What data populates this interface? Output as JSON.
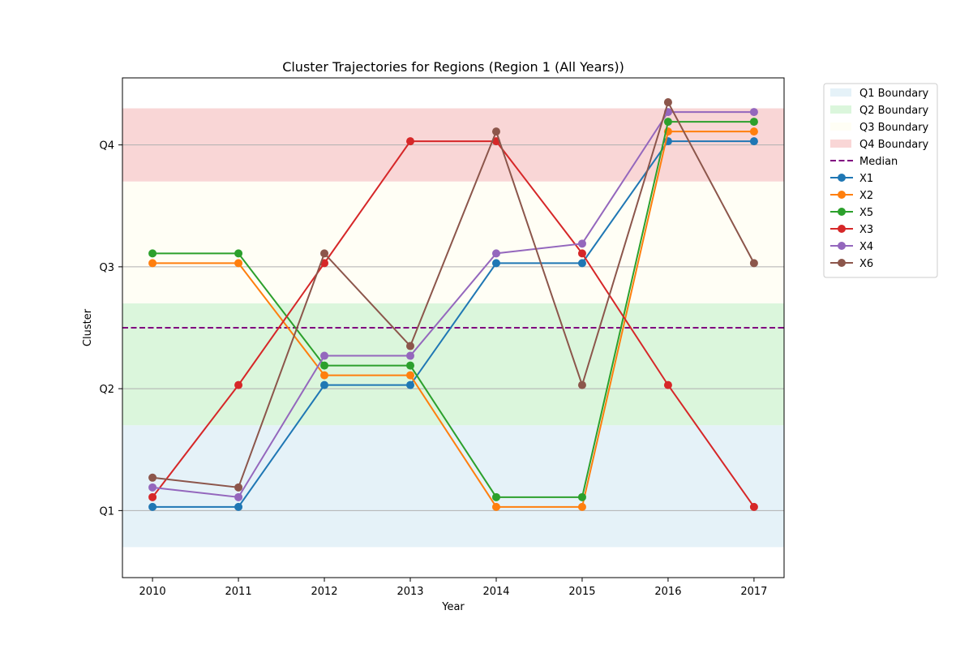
{
  "chart_data": {
    "type": "line",
    "title": "Cluster Trajectories for Regions (Region 1 (All Years))",
    "xlabel": "Year",
    "ylabel": "Cluster",
    "x": [
      2010,
      2011,
      2012,
      2013,
      2014,
      2015,
      2016,
      2017
    ],
    "xlim": [
      2009.65,
      2017.35
    ],
    "ylim": [
      0.45,
      4.55
    ],
    "y_ticks": [
      {
        "value": 1,
        "label": "Q1"
      },
      {
        "value": 2,
        "label": "Q2"
      },
      {
        "value": 3,
        "label": "Q3"
      },
      {
        "value": 4,
        "label": "Q4"
      }
    ],
    "grid": "horizontal",
    "legend_position": "outside top-right",
    "bands": [
      {
        "name": "Q1 Boundary",
        "from": 0.7,
        "to": 1.7,
        "color": "#e5f2f8"
      },
      {
        "name": "Q2 Boundary",
        "from": 1.7,
        "to": 2.7,
        "color": "#dbf6dc"
      },
      {
        "name": "Q3 Boundary",
        "from": 2.7,
        "to": 3.7,
        "color": "#fffef5"
      },
      {
        "name": "Q4 Boundary",
        "from": 3.7,
        "to": 4.3,
        "color": "#f9d6d6"
      }
    ],
    "median": {
      "name": "Median",
      "value": 2.5,
      "color": "#800080"
    },
    "series": [
      {
        "name": "X1",
        "color": "#1f77b4",
        "values": [
          1.03,
          1.03,
          2.03,
          2.03,
          3.03,
          3.03,
          4.03,
          4.03
        ]
      },
      {
        "name": "X2",
        "color": "#ff7f0e",
        "values": [
          3.03,
          3.03,
          2.11,
          2.11,
          1.03,
          1.03,
          4.11,
          4.11
        ]
      },
      {
        "name": "X5",
        "color": "#2ca02c",
        "values": [
          3.11,
          3.11,
          2.19,
          2.19,
          1.11,
          1.11,
          4.19,
          4.19
        ]
      },
      {
        "name": "X3",
        "color": "#d62728",
        "values": [
          1.11,
          2.03,
          3.03,
          4.03,
          4.03,
          3.11,
          2.03,
          1.03
        ]
      },
      {
        "name": "X4",
        "color": "#9467bd",
        "values": [
          1.19,
          1.11,
          2.27,
          2.27,
          3.11,
          3.19,
          4.27,
          4.27
        ]
      },
      {
        "name": "X6",
        "color": "#8c564b",
        "values": [
          1.27,
          1.19,
          3.11,
          2.35,
          4.11,
          2.03,
          4.35,
          3.03
        ]
      }
    ]
  }
}
